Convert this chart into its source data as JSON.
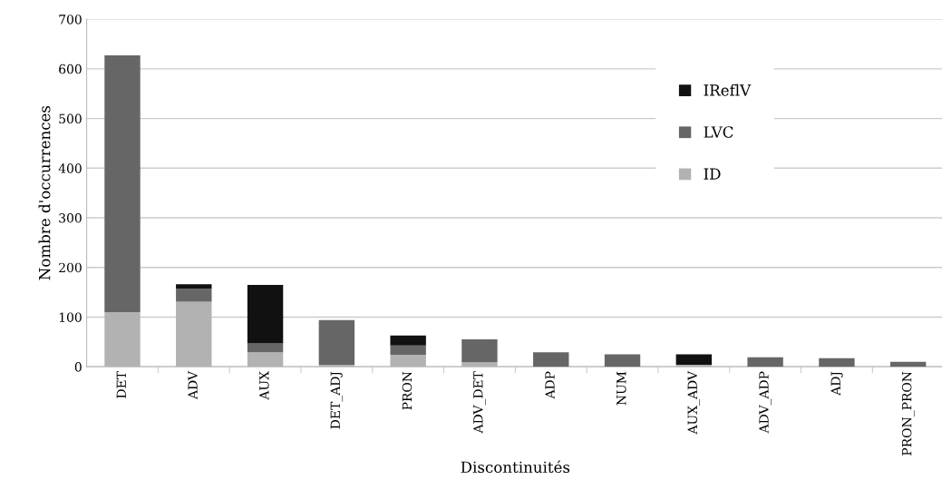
{
  "chart_data": {
    "type": "bar",
    "stacked": true,
    "xlabel": "Discontinuités",
    "ylabel": "Nombre d'occurrences",
    "categories": [
      "DET",
      "ADV",
      "AUX",
      "DET_ADJ",
      "PRON",
      "ADV_DET",
      "ADP",
      "NUM",
      "AUX_ADV",
      "ADV_ADP",
      "ADJ",
      "PRON_PRON"
    ],
    "series": [
      {
        "name": "ID",
        "color": "#b2b2b2",
        "values": [
          110,
          131,
          29,
          4,
          24,
          9,
          0,
          0,
          4,
          0,
          0,
          0
        ]
      },
      {
        "name": "LVC",
        "color": "#666666",
        "values": [
          517,
          26,
          18,
          90,
          19,
          46,
          29,
          25,
          0,
          19,
          17,
          10
        ]
      },
      {
        "name": "IReflV",
        "color": "#111111",
        "values": [
          0,
          9,
          118,
          0,
          20,
          0,
          0,
          0,
          21,
          0,
          0,
          0
        ]
      }
    ],
    "ylim": [
      0,
      700
    ],
    "yticks": [
      0,
      100,
      200,
      300,
      400,
      500,
      600,
      700
    ],
    "grid": "y",
    "legend": "top right"
  }
}
